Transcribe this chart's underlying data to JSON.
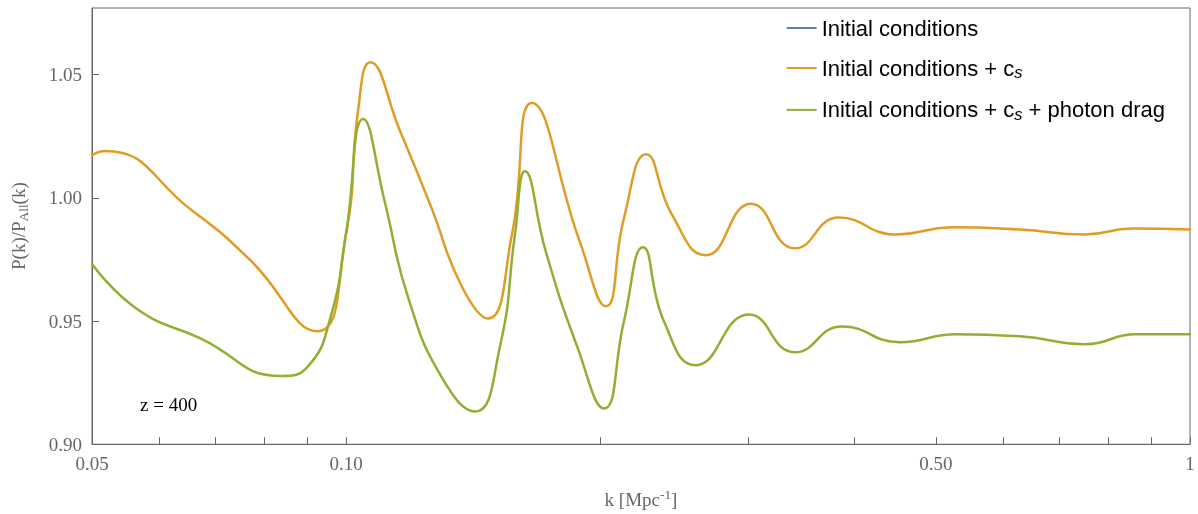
{
  "chart_data": {
    "type": "line",
    "xlabel": "k [Mpc$^{-1}$]",
    "ylabel": "P(k)/P$_{All}$(k)",
    "annotations": [
      "z = 400"
    ],
    "log": "x",
    "grid": false,
    "legend": "top right",
    "marker": "none",
    "line_style": "solid",
    "xlim": [
      0.05,
      1
    ],
    "ylim": [
      0.9,
      1.077
    ],
    "xticks": [
      {
        "value": 0.05,
        "label": "0.05"
      },
      {
        "value": 0.06,
        "label": null
      },
      {
        "value": 0.07,
        "label": null
      },
      {
        "value": 0.08,
        "label": null
      },
      {
        "value": 0.09,
        "label": null
      },
      {
        "value": 0.1,
        "label": "0.10"
      },
      {
        "value": 0.2,
        "label": null
      },
      {
        "value": 0.3,
        "label": null
      },
      {
        "value": 0.4,
        "label": null
      },
      {
        "value": 0.5,
        "label": "0.50"
      },
      {
        "value": 0.6,
        "label": null
      },
      {
        "value": 0.7,
        "label": null
      },
      {
        "value": 0.8,
        "label": null
      },
      {
        "value": 0.9,
        "label": null
      },
      1
    ],
    "yticks": [
      {
        "value": 0.9,
        "label": "0.90"
      },
      {
        "value": 0.95,
        "label": "0.95"
      },
      {
        "value": 1.0,
        "label": "1.00"
      },
      {
        "value": 1.05,
        "label": "1.05"
      }
    ],
    "series": [
      {
        "name": "Initial conditions",
        "color": "#5e81b5"
      },
      {
        "name": "Initial conditions + c$_{s}$",
        "color": "#e19c24",
        "x": [
          0.05,
          0.0518,
          0.0657,
          0.077,
          0.0924,
          0.1,
          0.1033,
          0.1068,
          0.1159,
          0.1261,
          0.1372,
          0.1473,
          0.1573,
          0.166,
          0.1893,
          0.2032,
          0.2134,
          0.2267,
          0.2433,
          0.267,
          0.3018,
          0.3403,
          0.3838,
          0.4483,
          0.522,
          0.629,
          0.751,
          0.854,
          1.0
        ],
        "values": [
          1.0173,
          1.019,
          0.9948,
          0.9747,
          0.9458,
          0.9855,
          1.035,
          1.055,
          1.027,
          0.9964,
          0.9639,
          0.951,
          0.9855,
          1.0385,
          0.982,
          0.956,
          0.9916,
          1.0177,
          0.9932,
          0.9767,
          0.9976,
          0.9795,
          0.992,
          0.9851,
          0.988,
          0.9871,
          0.9851,
          0.9875,
          0.9871
        ]
      },
      {
        "name": "Initial conditions + c$_{s}$ + photon drag",
        "color": "#8fb032",
        "x": [
          0.05,
          0.0567,
          0.0672,
          0.0838,
          0.0902,
          0.0959,
          0.1,
          0.1048,
          0.1112,
          0.1184,
          0.1299,
          0.1422,
          0.1522,
          0.1586,
          0.1629,
          0.1725,
          0.1878,
          0.2022,
          0.2134,
          0.2248,
          0.2381,
          0.2597,
          0.3002,
          0.3403,
          0.3869,
          0.4532,
          0.528,
          0.629,
          0.751,
          0.863,
          1.0
        ],
        "values": [
          0.9731,
          0.9546,
          0.943,
          0.9277,
          0.9317,
          0.9518,
          0.9855,
          1.032,
          0.998,
          0.9598,
          0.927,
          0.9133,
          0.9398,
          0.9855,
          1.0108,
          0.978,
          0.9398,
          0.9145,
          0.9498,
          0.9799,
          0.9498,
          0.9321,
          0.9526,
          0.9373,
          0.9478,
          0.9414,
          0.9446,
          0.9438,
          0.9406,
          0.9446,
          0.9446
        ]
      }
    ]
  }
}
